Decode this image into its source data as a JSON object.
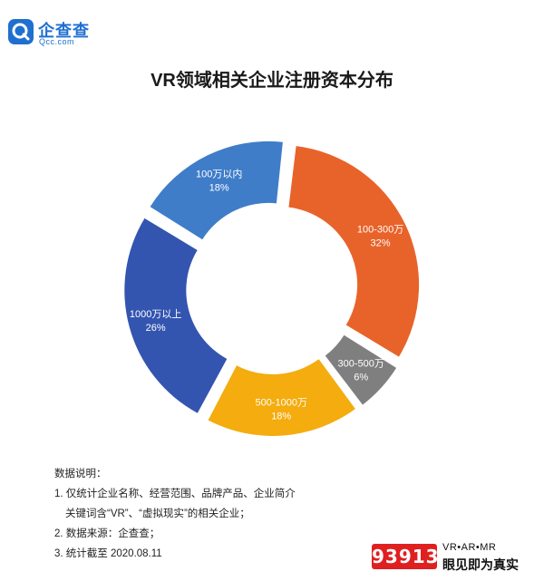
{
  "logo": {
    "name": "企查查",
    "sub": "Qcc.com"
  },
  "chart_data": {
    "type": "pie",
    "title": "VR领域相关企业注册资本分布",
    "variant": "donut",
    "slices": [
      {
        "label": "1000万以上",
        "pct_label": "26%",
        "value": 26,
        "color": "#3355b0"
      },
      {
        "label": "100万以内",
        "pct_label": "18%",
        "value": 18,
        "color": "#3f7dc9"
      },
      {
        "label": "100-300万",
        "pct_label": "32%",
        "value": 32,
        "color": "#e8632a"
      },
      {
        "label": "300-500万",
        "pct_label": "6%",
        "value": 6,
        "color": "#7f7f7f"
      },
      {
        "label": "500-1000万",
        "pct_label": "18%",
        "value": 18,
        "color": "#f4ac0e"
      }
    ]
  },
  "notes": {
    "heading": "数据说明：",
    "line1": "1. 仅统计企业名称、经营范围、品牌产品、企业简介",
    "line1b": "关键词含“VR”、“虚拟现实”的相关企业；",
    "line2": "2. 数据来源：企查查；",
    "line3": "3. 统计截至 2020.08.11"
  },
  "brand": {
    "number": "93913",
    "top": "VR•AR•MR",
    "bottom": "眼见即为真实"
  }
}
